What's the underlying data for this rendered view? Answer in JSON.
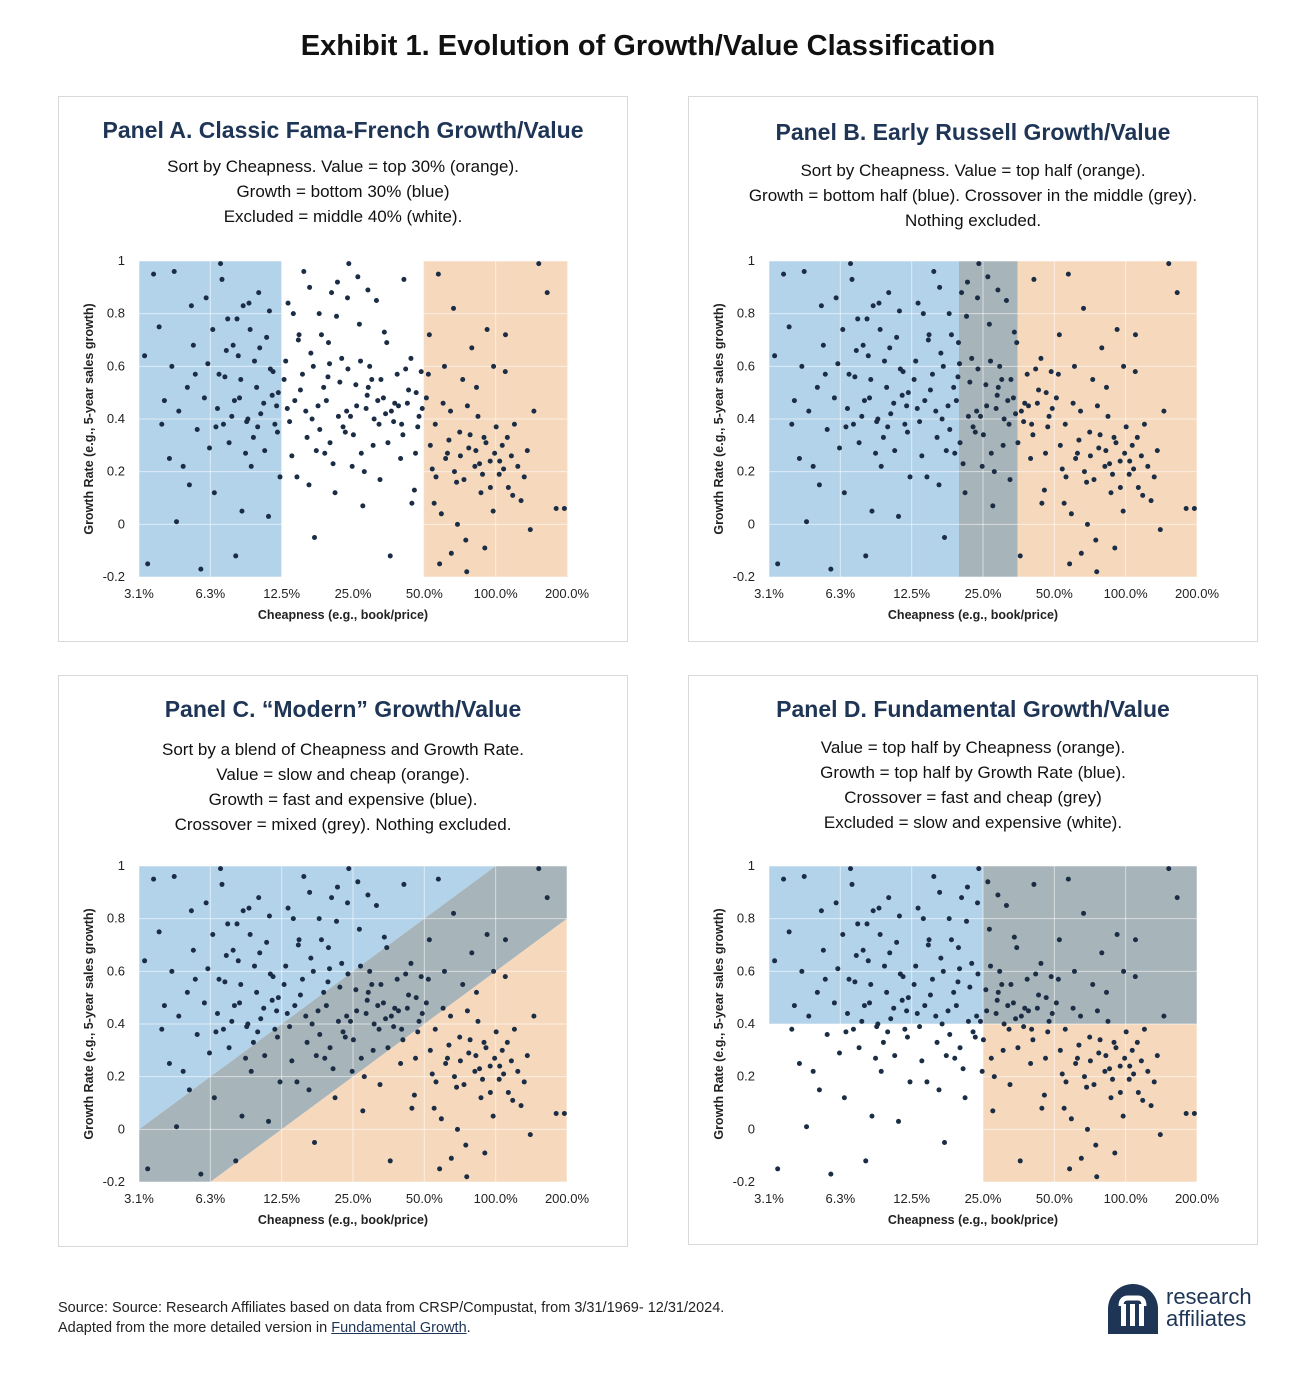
{
  "title": "Exhibit 1. Evolution of Growth/Value Classification",
  "colors": {
    "blue": "#b3d3ea",
    "orange": "#f6d9bd",
    "grey": "#a7b4b9",
    "white": "#ffffff",
    "dot": "#1b2c45",
    "title": "#1f3556"
  },
  "panels": [
    {
      "title": "Panel A. Classic Fama-French Growth/Value",
      "desc": [
        "Sort by Cheapness.  Value = top 30% (orange).",
        "Growth = bottom 30% (blue)",
        "Excluded = middle 40%  (white)."
      ]
    },
    {
      "title": "Panel B. Early Russell Growth/Value",
      "desc": [
        "Sort by Cheapness.  Value = top half (orange).",
        "Growth = bottom half (blue). Crossover in the middle (grey).",
        "Nothing excluded."
      ]
    },
    {
      "title": "Panel C. “Modern” Growth/Value",
      "desc": [
        "Sort by a blend of Cheapness and Growth Rate.",
        "Value = slow and cheap (orange).",
        "Growth = fast and expensive (blue).",
        "Crossover = mixed (grey). Nothing excluded."
      ]
    },
    {
      "title": "Panel D. Fundamental Growth/Value",
      "desc": [
        "Value = top half by Cheapness (orange).",
        "Growth = top half by Growth Rate (blue).",
        "Crossover = fast and cheap (grey)",
        "Excluded = slow and expensive (white)."
      ]
    }
  ],
  "chart_data": {
    "type": "scatter",
    "xlabel": "Cheapness (e.g., book/price)",
    "ylabel": "Growth Rate (e.g., 5-year sales growth)",
    "x_scale": "log2",
    "xlim": [
      3.125,
      200
    ],
    "ylim": [
      -0.2,
      1
    ],
    "x_tick_labels": [
      "3.1%",
      "6.3%",
      "12.5%",
      "25.0%",
      "50.0%",
      "100.0%",
      "200.0%"
    ],
    "x_ticks": [
      3.125,
      6.25,
      12.5,
      25,
      50,
      100,
      200
    ],
    "y_tick_labels": [
      "-0.2",
      "0",
      "0.2",
      "0.4",
      "0.6",
      "0.8",
      "1"
    ],
    "y_ticks": [
      -0.2,
      0,
      0.2,
      0.4,
      0.6,
      0.8,
      1
    ],
    "regions": {
      "A": {
        "growth_max_cheapness": 12.5,
        "value_min_cheapness": 50
      },
      "B": {
        "growth_max_cheapness": 19.8,
        "value_min_cheapness": 35
      },
      "C": {
        "upper_boundary": [
          [
            3.125,
            0.0
          ],
          [
            100,
            1.0
          ]
        ],
        "lower_boundary": [
          [
            6.25,
            -0.2
          ],
          [
            200,
            0.8
          ]
        ]
      },
      "D": {
        "cheapness_split": 25,
        "growth_split": 0.4
      }
    },
    "points": [
      [
        3.3,
        0.64
      ],
      [
        3.6,
        0.95
      ],
      [
        3.4,
        -0.15
      ],
      [
        3.9,
        0.38
      ],
      [
        4.0,
        0.47
      ],
      [
        4.2,
        0.25
      ],
      [
        4.5,
        0.01
      ],
      [
        4.8,
        0.22
      ],
      [
        5.0,
        0.52
      ],
      [
        5.3,
        0.68
      ],
      [
        5.5,
        0.36
      ],
      [
        5.7,
        -0.17
      ],
      [
        6.0,
        0.86
      ],
      [
        6.4,
        0.74
      ],
      [
        6.5,
        0.12
      ],
      [
        6.7,
        0.44
      ],
      [
        7.0,
        0.93
      ],
      [
        7.2,
        0.56
      ],
      [
        7.5,
        0.31
      ],
      [
        7.8,
        0.68
      ],
      [
        8.0,
        -0.12
      ],
      [
        8.3,
        0.48
      ],
      [
        8.6,
        0.83
      ],
      [
        9.0,
        0.4
      ],
      [
        9.3,
        0.22
      ],
      [
        9.6,
        0.62
      ],
      [
        10.0,
        0.88
      ],
      [
        10.5,
        0.46
      ],
      [
        11.0,
        0.03
      ],
      [
        11.5,
        0.58
      ],
      [
        12.0,
        0.35
      ],
      [
        4.4,
        0.96
      ],
      [
        5.1,
        0.15
      ],
      [
        6.9,
        0.99
      ],
      [
        7.7,
        0.41
      ],
      [
        8.1,
        0.78
      ],
      [
        8.8,
        0.27
      ],
      [
        9.8,
        0.52
      ],
      [
        10.8,
        0.71
      ],
      [
        11.7,
        0.38
      ],
      [
        4.6,
        0.43
      ],
      [
        5.4,
        0.57
      ],
      [
        6.2,
        0.29
      ],
      [
        7.3,
        0.66
      ],
      [
        8.5,
        0.05
      ],
      [
        9.1,
        0.84
      ],
      [
        10.2,
        0.42
      ],
      [
        11.2,
        0.59
      ],
      [
        12.3,
        0.18
      ],
      [
        6.6,
        0.37
      ],
      [
        7.9,
        0.47
      ],
      [
        8.9,
        0.39
      ],
      [
        9.5,
        0.33
      ],
      [
        10.6,
        0.28
      ],
      [
        11.9,
        0.45
      ],
      [
        6.1,
        0.61
      ],
      [
        7.1,
        0.38
      ],
      [
        8.4,
        0.55
      ],
      [
        9.9,
        0.37
      ],
      [
        11.4,
        0.49
      ],
      [
        13.0,
        0.62
      ],
      [
        13.5,
        0.39
      ],
      [
        14.0,
        0.8
      ],
      [
        14.5,
        0.18
      ],
      [
        15.0,
        0.51
      ],
      [
        15.5,
        0.96
      ],
      [
        16.0,
        0.33
      ],
      [
        16.6,
        0.65
      ],
      [
        17.2,
        -0.05
      ],
      [
        17.8,
        0.45
      ],
      [
        18.4,
        0.72
      ],
      [
        19.0,
        0.27
      ],
      [
        19.6,
        0.56
      ],
      [
        20.3,
        0.88
      ],
      [
        21.0,
        0.12
      ],
      [
        21.7,
        0.41
      ],
      [
        22.4,
        0.63
      ],
      [
        23.2,
        0.35
      ],
      [
        24.0,
        0.99
      ],
      [
        24.8,
        0.22
      ],
      [
        25.7,
        0.53
      ],
      [
        26.6,
        0.76
      ],
      [
        27.5,
        0.07
      ],
      [
        28.4,
        0.44
      ],
      [
        29.4,
        0.6
      ],
      [
        30.4,
        0.3
      ],
      [
        31.4,
        0.85
      ],
      [
        32.5,
        0.17
      ],
      [
        33.6,
        0.48
      ],
      [
        34.7,
        0.69
      ],
      [
        35.9,
        -0.12
      ],
      [
        37.1,
        0.39
      ],
      [
        38.4,
        0.57
      ],
      [
        39.7,
        0.25
      ],
      [
        41.0,
        0.93
      ],
      [
        42.4,
        0.46
      ],
      [
        43.9,
        0.63
      ],
      [
        45.4,
        0.13
      ],
      [
        46.9,
        0.37
      ],
      [
        48.5,
        0.58
      ],
      [
        13.8,
        0.26
      ],
      [
        14.7,
        0.7
      ],
      [
        15.8,
        0.43
      ],
      [
        17.0,
        0.6
      ],
      [
        18.1,
        0.36
      ],
      [
        19.3,
        0.47
      ],
      [
        20.6,
        0.23
      ],
      [
        22.0,
        0.54
      ],
      [
        23.5,
        0.43
      ],
      [
        25.1,
        0.34
      ],
      [
        26.9,
        0.62
      ],
      [
        28.7,
        0.49
      ],
      [
        30.7,
        0.4
      ],
      [
        32.8,
        0.55
      ],
      [
        35.1,
        0.31
      ],
      [
        37.5,
        0.46
      ],
      [
        40.1,
        0.38
      ],
      [
        42.9,
        0.51
      ],
      [
        45.9,
        0.27
      ],
      [
        49.0,
        0.44
      ],
      [
        16.3,
        0.15
      ],
      [
        21.3,
        0.79
      ],
      [
        27.9,
        0.2
      ],
      [
        33.9,
        0.73
      ],
      [
        44.3,
        0.08
      ],
      [
        14.2,
        0.47
      ],
      [
        18.8,
        0.52
      ],
      [
        24.4,
        0.41
      ],
      [
        31.8,
        0.47
      ],
      [
        38.9,
        0.45
      ],
      [
        51.0,
        0.48
      ],
      [
        52.5,
        0.72
      ],
      [
        54.0,
        0.21
      ],
      [
        55.6,
        0.38
      ],
      [
        57.3,
        0.95
      ],
      [
        59.0,
        0.04
      ],
      [
        60.8,
        0.6
      ],
      [
        62.6,
        0.27
      ],
      [
        64.5,
        0.43
      ],
      [
        66.4,
        0.82
      ],
      [
        68.4,
        0.16
      ],
      [
        70.5,
        0.35
      ],
      [
        72.6,
        0.55
      ],
      [
        74.8,
        -0.06
      ],
      [
        77.0,
        0.29
      ],
      [
        79.3,
        0.67
      ],
      [
        81.7,
        0.22
      ],
      [
        84.2,
        0.41
      ],
      [
        86.7,
        0.12
      ],
      [
        89.3,
        0.33
      ],
      [
        92.0,
        0.74
      ],
      [
        94.8,
        0.24
      ],
      [
        97.6,
        0.05
      ],
      [
        100.5,
        0.37
      ],
      [
        103.5,
        0.19
      ],
      [
        106.6,
        0.3
      ],
      [
        109.8,
        0.58
      ],
      [
        113.1,
        0.14
      ],
      [
        116.5,
        0.26
      ],
      [
        120.0,
        0.38
      ],
      [
        128.0,
        0.09
      ],
      [
        136.0,
        0.28
      ],
      [
        145.0,
        0.43
      ],
      [
        152.0,
        0.99
      ],
      [
        165.0,
        0.88
      ],
      [
        180.0,
        0.06
      ],
      [
        195.0,
        0.06
      ],
      [
        58.0,
        -0.15
      ],
      [
        65.0,
        -0.11
      ],
      [
        75.5,
        -0.18
      ],
      [
        53.0,
        0.3
      ],
      [
        56.0,
        0.18
      ],
      [
        61.5,
        0.25
      ],
      [
        63.5,
        0.32
      ],
      [
        67.0,
        0.2
      ],
      [
        71.0,
        0.26
      ],
      [
        73.5,
        0.17
      ],
      [
        78.0,
        0.34
      ],
      [
        82.5,
        0.28
      ],
      [
        85.5,
        0.23
      ],
      [
        88.0,
        0.19
      ],
      [
        91.0,
        0.31
      ],
      [
        95.0,
        0.14
      ],
      [
        99.0,
        0.27
      ],
      [
        104.0,
        0.24
      ],
      [
        108.0,
        0.21
      ],
      [
        112.0,
        0.33
      ],
      [
        118.0,
        0.11
      ],
      [
        124.0,
        0.22
      ],
      [
        132.0,
        0.18
      ],
      [
        52.0,
        0.57
      ],
      [
        55.0,
        0.08
      ],
      [
        60.0,
        0.46
      ],
      [
        69.0,
        0.0
      ],
      [
        76.0,
        0.45
      ],
      [
        83.0,
        0.52
      ],
      [
        90.0,
        -0.09
      ],
      [
        98.0,
        0.6
      ],
      [
        110.0,
        0.72
      ],
      [
        140.0,
        -0.02
      ],
      [
        13.2,
        0.44
      ],
      [
        15.3,
        0.57
      ],
      [
        17.5,
        0.28
      ],
      [
        19.9,
        0.61
      ],
      [
        22.7,
        0.37
      ],
      [
        25.9,
        0.45
      ],
      [
        29.0,
        0.52
      ],
      [
        32.2,
        0.38
      ],
      [
        36.3,
        0.43
      ],
      [
        40.6,
        0.34
      ],
      [
        47.5,
        0.41
      ],
      [
        12.8,
        0.55
      ],
      [
        16.8,
        0.4
      ],
      [
        20.0,
        0.31
      ],
      [
        23.8,
        0.59
      ],
      [
        27.1,
        0.27
      ],
      [
        30.0,
        0.55
      ],
      [
        34.3,
        0.42
      ],
      [
        41.7,
        0.59
      ],
      [
        46.2,
        0.5
      ],
      [
        3.8,
        0.75
      ],
      [
        4.3,
        0.6
      ],
      [
        5.2,
        0.83
      ],
      [
        5.9,
        0.48
      ],
      [
        6.8,
        0.57
      ],
      [
        7.4,
        0.78
      ],
      [
        8.2,
        0.64
      ],
      [
        9.2,
        0.74
      ],
      [
        10.1,
        0.67
      ],
      [
        11.1,
        0.81
      ],
      [
        12.1,
        0.5
      ],
      [
        13.3,
        0.84
      ],
      [
        14.8,
        0.72
      ],
      [
        16.4,
        0.9
      ],
      [
        18.0,
        0.8
      ],
      [
        19.7,
        0.69
      ],
      [
        21.5,
        0.92
      ],
      [
        23.7,
        0.86
      ],
      [
        26.2,
        0.94
      ],
      [
        28.9,
        0.89
      ]
    ]
  },
  "source": {
    "line1": "Source: Source: Research Affiliates based on data from CRSP/Compustat, from 3/31/1969- 12/31/2024.",
    "line2_prefix": "Adapted from the more detailed version in ",
    "link": "Fundamental Growth",
    "line2_suffix": "."
  },
  "logo": {
    "mark": "ʀᴀ",
    "line1": "research",
    "line2": "affiliates"
  }
}
